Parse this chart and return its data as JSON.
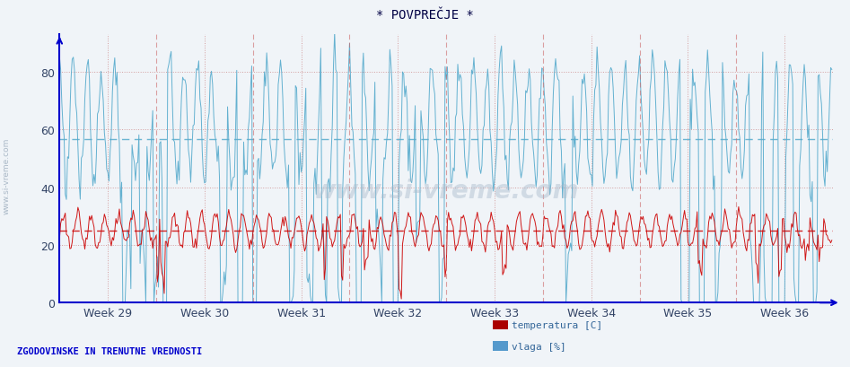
{
  "title": "* POVPREČJE *",
  "xlabel_weeks": [
    "Week 29",
    "Week 30",
    "Week 31",
    "Week 32",
    "Week 33",
    "Week 34",
    "Week 35",
    "Week 36"
  ],
  "ylim": [
    0,
    93
  ],
  "yticks": [
    0,
    20,
    40,
    60,
    80
  ],
  "hline_cyan": 56.5,
  "hline_red": 25.0,
  "bg_color": "#f0f4f8",
  "plot_bg_color": "#f0f4f8",
  "grid_color": "#ddaaaa",
  "temp_color": "#cc0000",
  "vlaga_color": "#55aacc",
  "axis_color": "#0000cc",
  "title_color": "#000044",
  "footer_text": "ZGODOVINSKE IN TRENUTNE VREDNOSTI",
  "footer_color": "#0000cc",
  "legend_items": [
    "temperatura [C]",
    "vlaga [%]"
  ],
  "legend_colors": [
    "#aa0000",
    "#5599cc"
  ],
  "watermark": "www.si-vreme.com",
  "side_text": "www.si-vreme.com",
  "n_points": 672,
  "tick_color": "#334466",
  "tick_fontsize": 9,
  "title_fontsize": 10
}
